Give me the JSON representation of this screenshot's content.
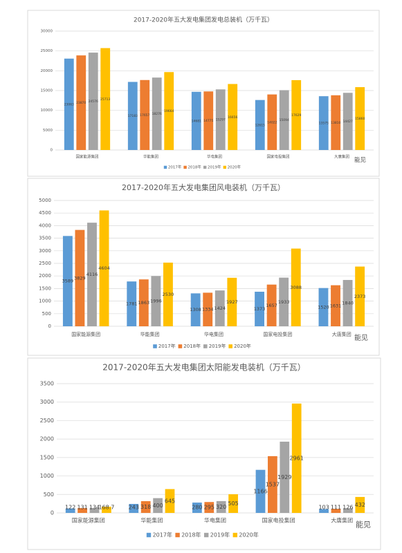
{
  "chart_data": [
    {
      "type": "bar",
      "title": "2017-2020年五大发电集团发电总装机（万千瓦）",
      "categories": [
        "国家能源集团",
        "华能集团",
        "华电集团",
        "国家电投集团",
        "大唐集团"
      ],
      "series": [
        {
          "name": "2017年",
          "color": "#5b9bd5",
          "values": [
            23063,
            17183,
            14681,
            12615,
            13575
          ]
        },
        {
          "name": "2018年",
          "color": "#ed7d31",
          "values": [
            23870,
            17657,
            14775,
            14022,
            13810
          ]
        },
        {
          "name": "2019年",
          "color": "#a5a5a5",
          "values": [
            24576,
            18276,
            15297,
            15094,
            14427
          ]
        },
        {
          "name": "2020年",
          "color": "#ffc000",
          "values": [
            25713,
            19664,
            16656,
            17629,
            15860
          ]
        }
      ],
      "ylim": [
        0,
        30000
      ],
      "yticks": [
        0,
        5000,
        10000,
        15000,
        20000,
        25000,
        30000
      ],
      "annotation": "能见"
    },
    {
      "type": "bar",
      "title": "2017-2020年五大发电集团风电装机（万千瓦）",
      "categories": [
        "国家能源集团",
        "华能集团",
        "华电集团",
        "国家电投集团",
        "大唐集团"
      ],
      "series": [
        {
          "name": "2017年",
          "color": "#5b9bd5",
          "values": [
            3589,
            1781,
            1308,
            1373,
            1520
          ]
        },
        {
          "name": "2018年",
          "color": "#ed7d31",
          "values": [
            3829,
            1863,
            1334,
            1657,
            1631
          ]
        },
        {
          "name": "2019年",
          "color": "#a5a5a5",
          "values": [
            4116,
            1996,
            1424,
            1933,
            1840
          ]
        },
        {
          "name": "2020年",
          "color": "#ffc000",
          "values": [
            4604,
            2530,
            1927,
            3088,
            2373
          ]
        }
      ],
      "ylim": [
        0,
        5000
      ],
      "yticks": [
        0,
        500,
        1000,
        1500,
        2000,
        2500,
        3000,
        3500,
        4000,
        4500,
        5000
      ],
      "annotation": "能见"
    },
    {
      "type": "bar",
      "title": "2017-2020年五大发电集团太阳能发电装机（万千瓦）",
      "categories": [
        "国家能源集团",
        "华能集团",
        "华电集团",
        "国家电投集团",
        "大唐集团"
      ],
      "series": [
        {
          "name": "2017年",
          "color": "#5b9bd5",
          "values": [
            122,
            243,
            280,
            1166,
            103
          ]
        },
        {
          "name": "2018年",
          "color": "#ed7d31",
          "values": [
            131,
            318,
            295,
            1537,
            111
          ]
        },
        {
          "name": "2019年",
          "color": "#a5a5a5",
          "values": [
            134,
            400,
            320,
            1929,
            126
          ]
        },
        {
          "name": "2020年",
          "color": "#ffc000",
          "values": [
            168.7,
            645,
            505,
            2961,
            432
          ]
        }
      ],
      "ylim": [
        0,
        3500
      ],
      "yticks": [
        0,
        500,
        1000,
        1500,
        2000,
        2500,
        3000,
        3500
      ],
      "annotation": "能见"
    }
  ]
}
